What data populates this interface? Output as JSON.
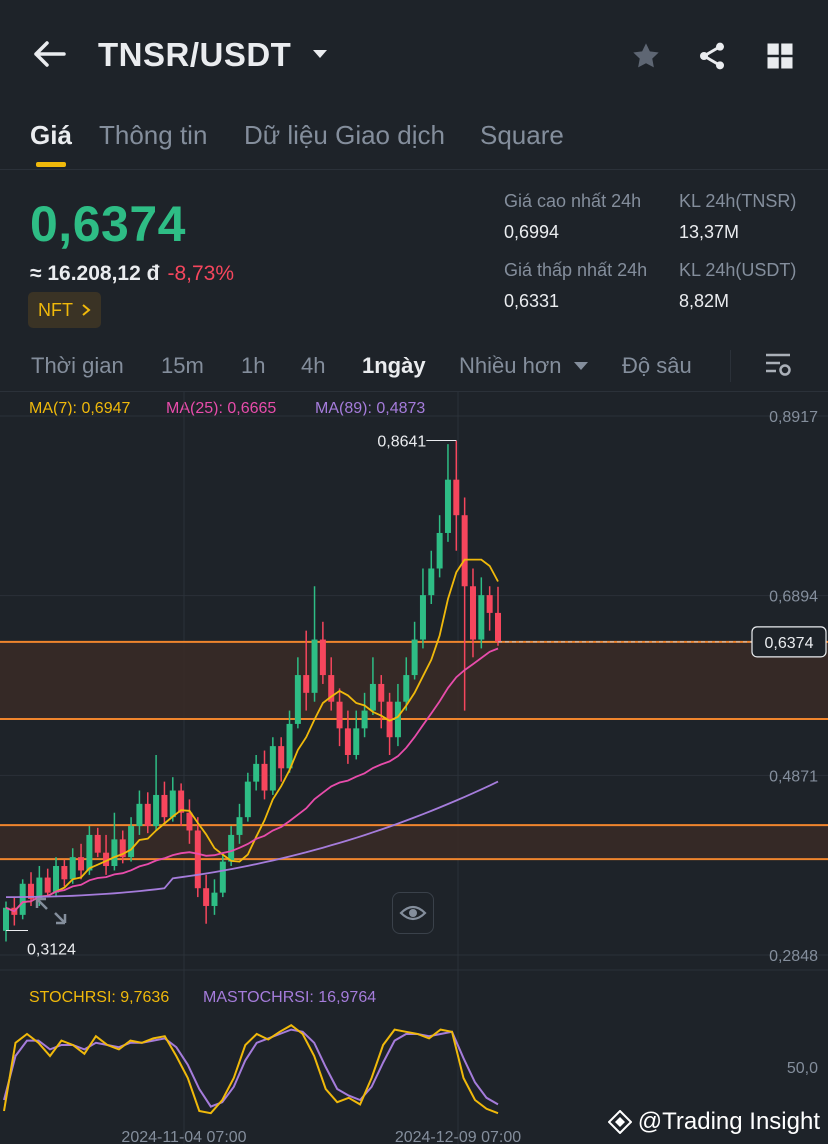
{
  "header": {
    "pair": "TNSR/USDT"
  },
  "tabs": [
    {
      "label": "Giá",
      "active": true
    },
    {
      "label": "Thông tin",
      "active": false
    },
    {
      "label": "Dữ liệu Giao dịch",
      "active": false
    },
    {
      "label": "Square",
      "active": false
    }
  ],
  "price": {
    "last": "0,6374",
    "fiat": "≈ 16.208,12 đ",
    "change": "-8,73%",
    "badge": "NFT"
  },
  "stats": {
    "high_label": "Giá cao nhất 24h",
    "high_value": "0,6994",
    "low_label": "Giá thấp nhất 24h",
    "low_value": "0,6331",
    "vol_base_label": "KL 24h(TNSR)",
    "vol_base_value": "13,37M",
    "vol_quote_label": "KL 24h(USDT)",
    "vol_quote_value": "8,82M"
  },
  "timebar": {
    "time": "Thời gian",
    "m15": "15m",
    "h1": "1h",
    "h4": "4h",
    "d1": "1ngày",
    "more": "Nhiều hơn",
    "depth": "Độ sâu"
  },
  "ma": {
    "ma7": "MA(7): 0,6947",
    "ma25": "MA(25): 0,6665",
    "ma89": "MA(89): 0,4873"
  },
  "axis": {
    "y1": "0,8917",
    "y2": "0,6894",
    "y3": "0,4871",
    "y4": "0,2848",
    "current": "0,6374",
    "max_marker": "0,8641",
    "min_marker": "0,3124",
    "stoch_level": "50,0",
    "x1": "2024-11-04 07:00",
    "x2": "2024-12-09 07:00"
  },
  "stoch": {
    "stochrsi": "STOCHRSI: 9,7636",
    "mastochrsi": "MASTOCHRSI: 16,9764"
  },
  "watermark": {
    "text": "@Trading Insight"
  },
  "colors": {
    "up": "#2ebd85",
    "down": "#f6465d",
    "accent": "#f0b90b",
    "ma7": "#f0b90b",
    "ma25": "#e84cab",
    "ma89": "#a57cdb",
    "zone_line": "#f0852d"
  },
  "chart_data": {
    "type": "candlestick",
    "timeframe": "1ngày",
    "y_ticks": [
      0.8917,
      0.6894,
      0.4871,
      0.2848
    ],
    "ylim": [
      0.2848,
      0.8917
    ],
    "current_price": 0.6374,
    "high_marker": 0.8641,
    "low_marker": 0.3124,
    "x_ticks": [
      "2024-11-04 07:00",
      "2024-12-09 07:00"
    ],
    "zones": [
      [
        0.5505,
        0.6374
      ],
      [
        0.3927,
        0.431
      ]
    ],
    "candles": [
      [
        0.312,
        0.338,
        0.3,
        0.345
      ],
      [
        0.338,
        0.33,
        0.318,
        0.35
      ],
      [
        0.33,
        0.365,
        0.325,
        0.37
      ],
      [
        0.365,
        0.348,
        0.34,
        0.378
      ],
      [
        0.348,
        0.372,
        0.34,
        0.385
      ],
      [
        0.372,
        0.355,
        0.35,
        0.382
      ],
      [
        0.355,
        0.385,
        0.35,
        0.395
      ],
      [
        0.385,
        0.37,
        0.362,
        0.392
      ],
      [
        0.37,
        0.395,
        0.365,
        0.405
      ],
      [
        0.395,
        0.38,
        0.37,
        0.41
      ],
      [
        0.38,
        0.42,
        0.375,
        0.43
      ],
      [
        0.42,
        0.4,
        0.395,
        0.428
      ],
      [
        0.4,
        0.385,
        0.375,
        0.42
      ],
      [
        0.385,
        0.415,
        0.38,
        0.445
      ],
      [
        0.415,
        0.395,
        0.388,
        0.425
      ],
      [
        0.395,
        0.43,
        0.39,
        0.44
      ],
      [
        0.43,
        0.455,
        0.42,
        0.47
      ],
      [
        0.455,
        0.43,
        0.422,
        0.468
      ],
      [
        0.43,
        0.465,
        0.425,
        0.51
      ],
      [
        0.465,
        0.44,
        0.432,
        0.48
      ],
      [
        0.44,
        0.47,
        0.435,
        0.485
      ],
      [
        0.47,
        0.445,
        0.43,
        0.478
      ],
      [
        0.445,
        0.425,
        0.41,
        0.46
      ],
      [
        0.425,
        0.36,
        0.35,
        0.44
      ],
      [
        0.36,
        0.34,
        0.32,
        0.375
      ],
      [
        0.34,
        0.355,
        0.33,
        0.37
      ],
      [
        0.355,
        0.39,
        0.35,
        0.4
      ],
      [
        0.39,
        0.42,
        0.385,
        0.43
      ],
      [
        0.42,
        0.44,
        0.41,
        0.455
      ],
      [
        0.44,
        0.48,
        0.435,
        0.49
      ],
      [
        0.48,
        0.5,
        0.47,
        0.51
      ],
      [
        0.5,
        0.47,
        0.46,
        0.515
      ],
      [
        0.47,
        0.52,
        0.465,
        0.53
      ],
      [
        0.52,
        0.495,
        0.48,
        0.53
      ],
      [
        0.495,
        0.545,
        0.49,
        0.56
      ],
      [
        0.545,
        0.6,
        0.54,
        0.62
      ],
      [
        0.6,
        0.58,
        0.56,
        0.65
      ],
      [
        0.58,
        0.64,
        0.57,
        0.7
      ],
      [
        0.64,
        0.6,
        0.59,
        0.66
      ],
      [
        0.6,
        0.57,
        0.56,
        0.62
      ],
      [
        0.57,
        0.54,
        0.52,
        0.585
      ],
      [
        0.54,
        0.51,
        0.5,
        0.56
      ],
      [
        0.51,
        0.54,
        0.505,
        0.56
      ],
      [
        0.54,
        0.56,
        0.53,
        0.58
      ],
      [
        0.56,
        0.59,
        0.555,
        0.62
      ],
      [
        0.59,
        0.57,
        0.54,
        0.6
      ],
      [
        0.57,
        0.53,
        0.51,
        0.58
      ],
      [
        0.53,
        0.57,
        0.52,
        0.59
      ],
      [
        0.57,
        0.6,
        0.56,
        0.62
      ],
      [
        0.6,
        0.64,
        0.595,
        0.66
      ],
      [
        0.64,
        0.69,
        0.63,
        0.72
      ],
      [
        0.69,
        0.72,
        0.68,
        0.74
      ],
      [
        0.72,
        0.76,
        0.71,
        0.78
      ],
      [
        0.76,
        0.82,
        0.75,
        0.86
      ],
      [
        0.82,
        0.78,
        0.74,
        0.864
      ],
      [
        0.78,
        0.7,
        0.56,
        0.8
      ],
      [
        0.7,
        0.64,
        0.62,
        0.72
      ],
      [
        0.64,
        0.69,
        0.63,
        0.71
      ],
      [
        0.69,
        0.67,
        0.65,
        0.7
      ],
      [
        0.67,
        0.6374,
        0.633,
        0.6994
      ]
    ],
    "stoch_levels": [
      50.0
    ],
    "stoch_k": [
      10,
      72,
      80,
      72,
      60,
      74,
      70,
      62,
      78,
      70,
      66,
      74,
      72,
      76,
      78,
      60,
      40,
      10,
      8,
      20,
      40,
      70,
      80,
      75,
      82,
      88,
      80,
      60,
      30,
      18,
      22,
      16,
      40,
      70,
      84,
      82,
      80,
      76,
      84,
      82,
      40,
      20,
      12,
      8
    ],
    "stoch_d": [
      20,
      60,
      74,
      74,
      66,
      70,
      70,
      66,
      72,
      70,
      68,
      72,
      72,
      74,
      76,
      68,
      52,
      30,
      14,
      18,
      32,
      56,
      72,
      76,
      80,
      84,
      82,
      72,
      50,
      30,
      24,
      20,
      32,
      54,
      74,
      80,
      80,
      78,
      80,
      82,
      58,
      36,
      22,
      16
    ]
  }
}
